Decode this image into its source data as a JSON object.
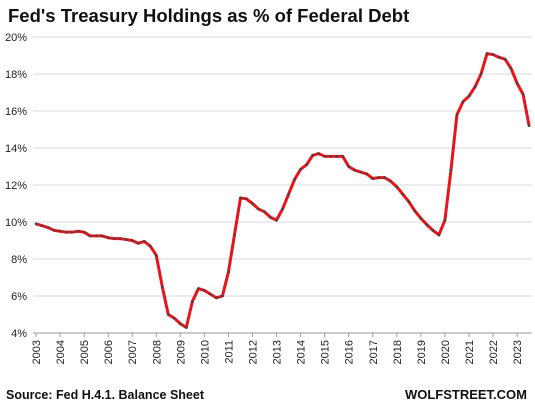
{
  "chart_data": {
    "type": "line",
    "title": "Fed's Treasury Holdings as % of Federal Debt",
    "source": "Source: Fed H.4.1. Balance Sheet",
    "credit": "WOLFSTREET.COM",
    "x": [
      2003,
      2003.25,
      2003.5,
      2003.75,
      2004,
      2004.25,
      2004.5,
      2004.75,
      2005,
      2005.25,
      2005.5,
      2005.75,
      2006,
      2006.25,
      2006.5,
      2006.75,
      2007,
      2007.25,
      2007.5,
      2007.75,
      2008,
      2008.25,
      2008.5,
      2008.75,
      2009,
      2009.25,
      2009.5,
      2009.75,
      2010,
      2010.25,
      2010.5,
      2010.75,
      2011,
      2011.25,
      2011.5,
      2011.75,
      2012,
      2012.25,
      2012.5,
      2012.75,
      2013,
      2013.25,
      2013.5,
      2013.75,
      2014,
      2014.25,
      2014.5,
      2014.75,
      2015,
      2015.25,
      2015.5,
      2015.75,
      2016,
      2016.25,
      2016.5,
      2016.75,
      2017,
      2017.25,
      2017.5,
      2017.75,
      2018,
      2018.25,
      2018.5,
      2018.75,
      2019,
      2019.25,
      2019.5,
      2019.75,
      2020,
      2020.25,
      2020.5,
      2020.75,
      2021,
      2021.25,
      2021.5,
      2021.75,
      2022,
      2022.25,
      2022.5,
      2022.75,
      2023,
      2023.25,
      2023.5
    ],
    "series": [
      {
        "name": "Fed's Treasury Holdings as % of Federal Debt",
        "color": "#e8141c",
        "values": [
          9.9,
          9.8,
          9.7,
          9.55,
          9.5,
          9.45,
          9.45,
          9.5,
          9.45,
          9.25,
          9.25,
          9.25,
          9.15,
          9.1,
          9.1,
          9.05,
          9.0,
          8.85,
          8.95,
          8.7,
          8.2,
          6.5,
          5.0,
          4.8,
          4.5,
          4.3,
          5.7,
          6.4,
          6.3,
          6.1,
          5.9,
          6.0,
          7.3,
          9.3,
          11.3,
          11.25,
          11.0,
          10.7,
          10.55,
          10.25,
          10.1,
          10.7,
          11.5,
          12.3,
          12.85,
          13.1,
          13.6,
          13.7,
          13.55,
          13.55,
          13.55,
          13.55,
          13.0,
          12.8,
          12.7,
          12.6,
          12.35,
          12.4,
          12.4,
          12.2,
          11.9,
          11.5,
          11.1,
          10.6,
          10.2,
          9.85,
          9.55,
          9.3,
          10.1,
          12.8,
          15.8,
          16.5,
          16.8,
          17.3,
          18.0,
          19.1,
          19.05,
          18.9,
          18.8,
          18.3,
          17.5,
          16.9,
          15.2
        ]
      }
    ],
    "xlim": [
      2002.875,
      2023.62
    ],
    "xticks": [
      2003,
      2004,
      2005,
      2006,
      2007,
      2008,
      2009,
      2010,
      2011,
      2012,
      2013,
      2014,
      2015,
      2016,
      2017,
      2018,
      2019,
      2020,
      2021,
      2022,
      2023
    ],
    "ylim": [
      4,
      20
    ],
    "yticks": [
      {
        "value": 4,
        "label": "4%"
      },
      {
        "value": 6,
        "label": "6%"
      },
      {
        "value": 8,
        "label": "8%"
      },
      {
        "value": 10,
        "label": "10%"
      },
      {
        "value": 12,
        "label": "12%"
      },
      {
        "value": 14,
        "label": "14%"
      },
      {
        "value": 16,
        "label": "16%"
      },
      {
        "value": 18,
        "label": "18%"
      },
      {
        "value": 20,
        "label": "20%"
      }
    ],
    "grid": true
  }
}
